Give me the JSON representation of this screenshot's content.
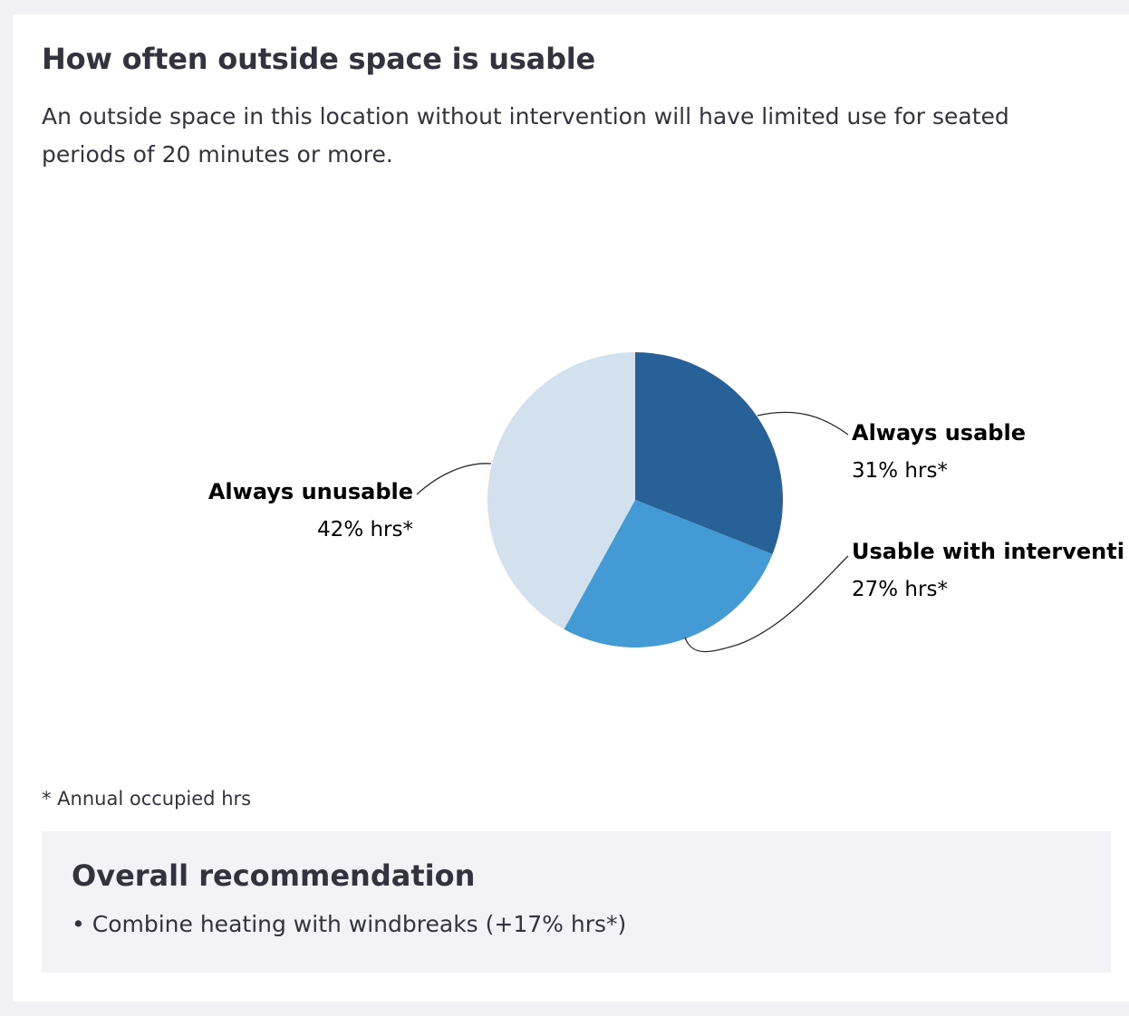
{
  "card": {
    "title": "How often outside space is usable",
    "description": "An outside space in this location without intervention will have limited use for seated periods of 20 minutes or more."
  },
  "chart_data": {
    "type": "pie",
    "slices": [
      {
        "label": "Always usable",
        "value": 31,
        "value_label": "31% hrs*",
        "color": "#286098"
      },
      {
        "label": "Usable with interventi",
        "value": 27,
        "value_label": "27% hrs*",
        "color": "#439ad4"
      },
      {
        "label": "Always unusable",
        "value": 42,
        "value_label": "42% hrs*",
        "color": "#d3e0ed"
      }
    ]
  },
  "footnote": "* Annual occupied hrs",
  "recommendation": {
    "title": "Overall recommendation",
    "items": [
      "Combine heating with windbreaks (+17% hrs*)"
    ]
  }
}
